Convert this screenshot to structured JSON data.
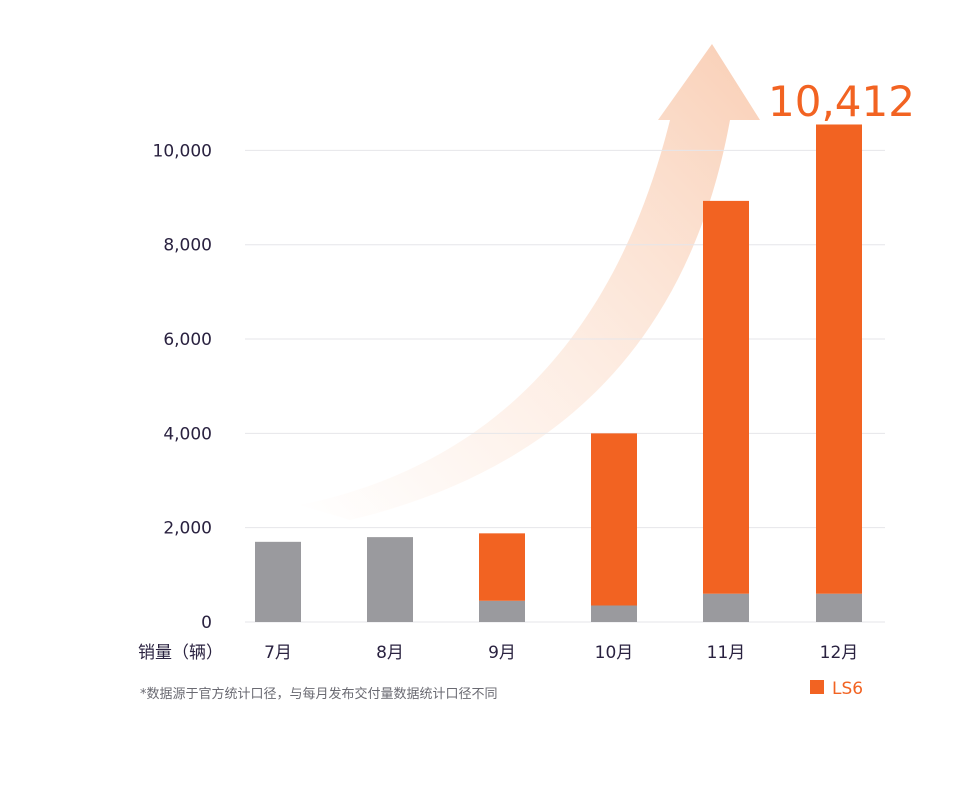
{
  "chart_data": {
    "type": "bar",
    "stacked": true,
    "categories": [
      "7月",
      "8月",
      "9月",
      "10月",
      "11月",
      "12月"
    ],
    "series": [
      {
        "values": [
          1700,
          1800,
          450,
          350,
          600,
          600
        ],
        "color": "#9a9a9e"
      },
      {
        "name": "LS6",
        "values": [
          0,
          0,
          1430,
          3650,
          8330,
          9950
        ],
        "color": "#f26322"
      }
    ],
    "ylim": [
      0,
      10412
    ],
    "yticks": [
      "0",
      "2,000",
      "4,000",
      "6,000",
      "8,000",
      "10,000"
    ],
    "ytick_values": [
      0,
      2000,
      4000,
      6000,
      8000,
      10000
    ],
    "xlabel": "销量（辆）",
    "callout": "10,412",
    "footnote": "*数据源于官方统计口径，与每月发布交付量数据统计口径不同",
    "legend": {
      "label": "LS6",
      "position": "bottom-right",
      "color": "#f26322"
    },
    "grid": true
  }
}
